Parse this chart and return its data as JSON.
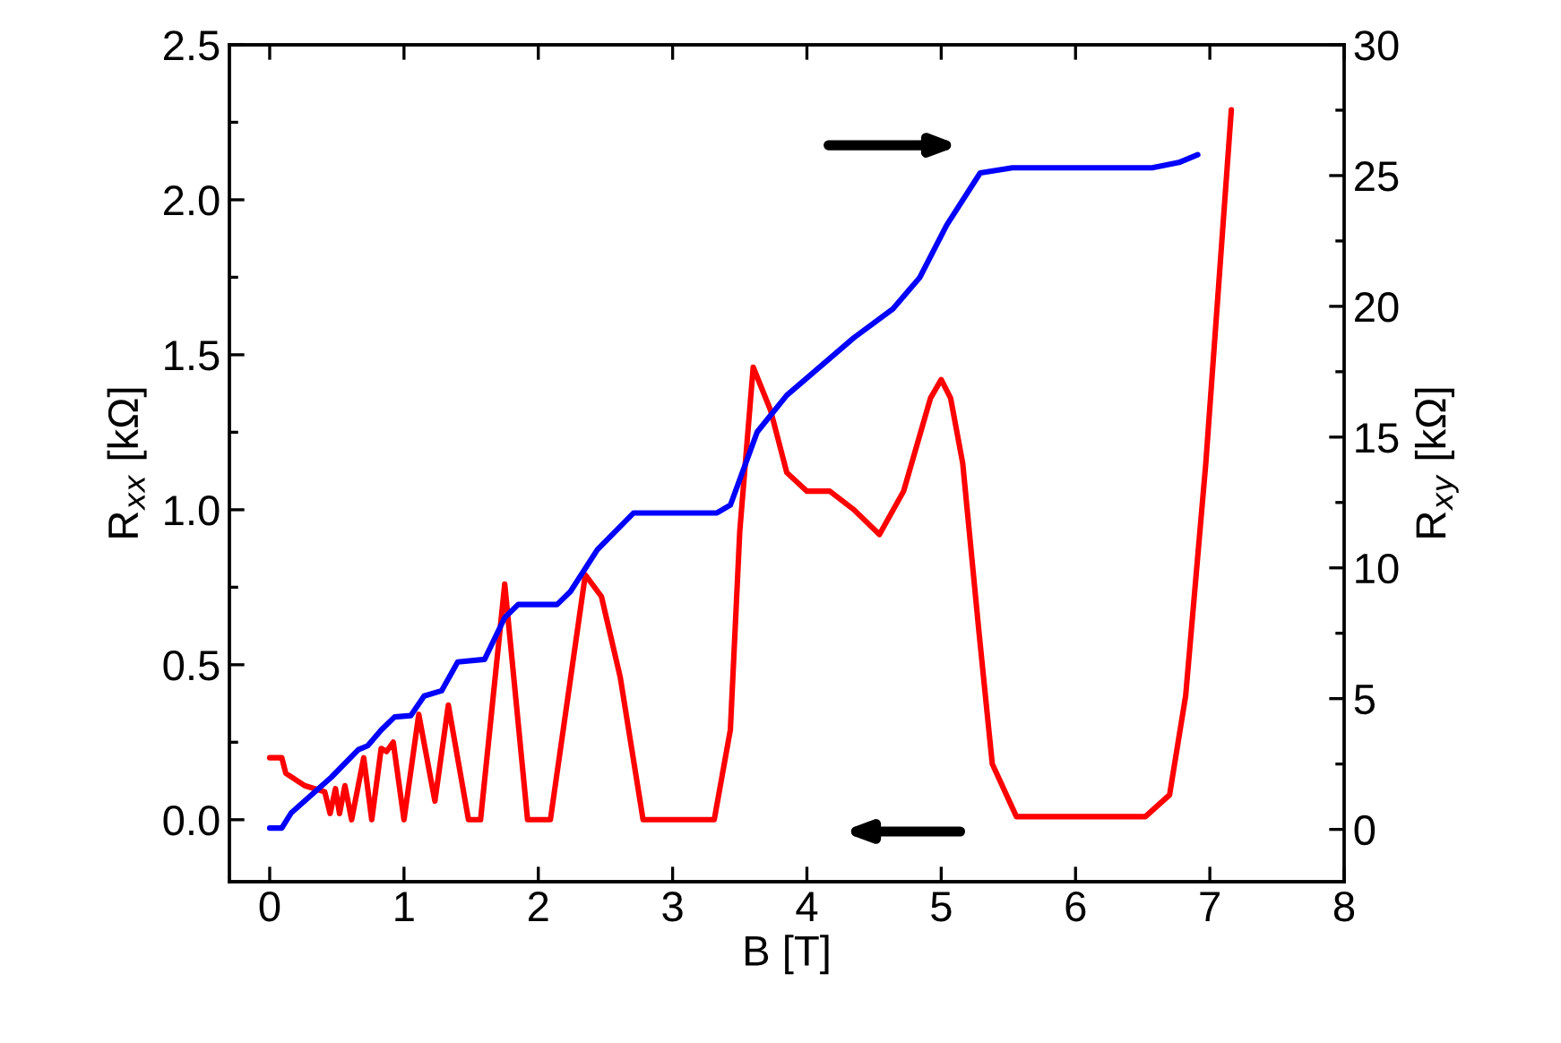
{
  "chart_data": {
    "type": "line",
    "xlabel": "B [T]",
    "ylabel": "R$_{xx}$ [kΩ]",
    "y2label": "R$_{xy}$ [kΩ]",
    "xlim": [
      -0.3,
      8
    ],
    "xticks": [
      0,
      1,
      2,
      3,
      4,
      5,
      6,
      7,
      8
    ],
    "ylim": [
      -0.2,
      2.5
    ],
    "yticks": [
      {
        "value": 0,
        "label": "0.0"
      },
      0.5,
      {
        "value": 1,
        "label": "1.0"
      },
      1.5,
      {
        "value": 2,
        "label": "2.0"
      },
      2.5
    ],
    "y2lim": [
      -2,
      30
    ],
    "y2ticks": [
      0,
      5,
      10,
      15,
      20,
      25,
      30
    ],
    "grid": false,
    "series": [
      {
        "color": "#ff0000",
        "x": [
          0,
          0.09,
          0.12,
          0.26,
          0.41,
          0.45,
          0.49,
          0.52,
          0.56,
          0.61,
          0.7,
          0.76,
          0.83,
          0.87,
          0.92,
          1.0,
          1.11,
          1.23,
          1.33,
          1.48,
          1.57,
          1.75,
          1.92,
          2.09,
          2.35,
          2.47,
          2.61,
          2.78,
          3.31,
          3.43,
          3.5,
          3.6,
          3.73,
          3.85,
          4.0,
          4.17,
          4.35,
          4.54,
          4.72,
          4.92,
          5.0,
          5.07,
          5.16,
          5.28,
          5.38,
          5.56,
          6.52,
          6.7,
          6.82,
          6.97,
          7.16
        ],
        "values": [
          0.2,
          0.2,
          0.15,
          0.11,
          0.09,
          0.02,
          0.1,
          0.02,
          0.11,
          0.0,
          0.2,
          0.0,
          0.23,
          0.22,
          0.25,
          0.0,
          0.34,
          0.06,
          0.37,
          0.0,
          0.0,
          0.76,
          0.0,
          0.0,
          0.79,
          0.72,
          0.46,
          0.0,
          0.0,
          0.29,
          0.93,
          1.46,
          1.32,
          1.12,
          1.06,
          1.06,
          1.0,
          0.92,
          1.06,
          1.36,
          1.42,
          1.36,
          1.15,
          0.61,
          0.18,
          0.01,
          0.01,
          0.08,
          0.4,
          1.15,
          2.29
        ]
      },
      {
        "color": "#0000ff",
        "axis": "y2",
        "x": [
          0,
          0.09,
          0.16,
          0.46,
          0.66,
          0.73,
          0.83,
          0.93,
          1.05,
          1.15,
          1.28,
          1.4,
          1.6,
          1.75,
          1.85,
          2.14,
          2.24,
          2.44,
          2.71,
          2.94,
          3.33,
          3.43,
          3.63,
          3.85,
          4.35,
          4.64,
          4.84,
          5.04,
          5.29,
          5.53,
          6.57,
          6.77,
          6.91
        ],
        "values": [
          0.05,
          0.05,
          0.63,
          2.0,
          3.05,
          3.2,
          3.8,
          4.3,
          4.35,
          5.1,
          5.3,
          6.4,
          6.5,
          8.1,
          8.6,
          8.6,
          9.1,
          10.7,
          12.1,
          12.1,
          12.1,
          12.4,
          15.2,
          16.6,
          18.8,
          19.9,
          21.1,
          23.1,
          25.1,
          25.3,
          25.3,
          25.5,
          25.8
        ]
      }
    ]
  }
}
